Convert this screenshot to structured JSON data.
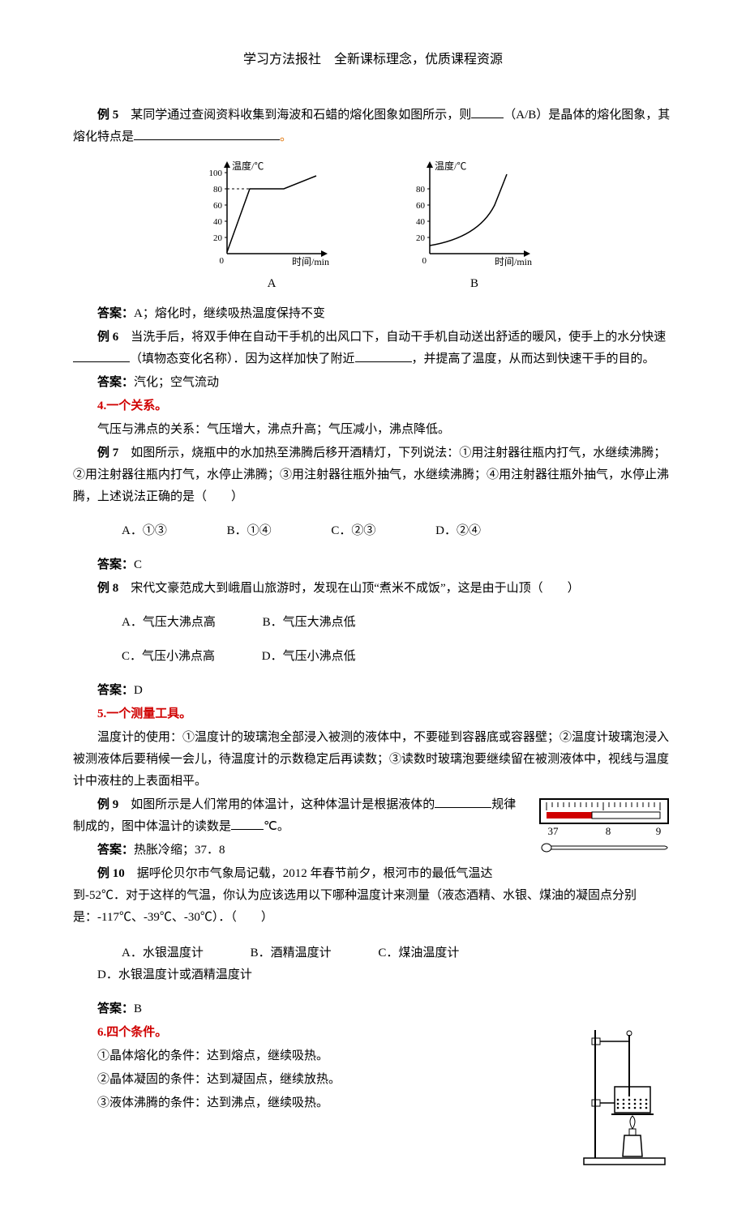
{
  "header": "学习方法报社　全新课标理念，优质课程资源",
  "ex5": {
    "label": "例 5",
    "text_before_blank": "某同学通过查阅资料收集到海波和石蜡的熔化图象如图所示，则",
    "text_middle": "（A/B）是晶体的熔化图象，其熔化特点是",
    "period": "。"
  },
  "chartA": {
    "y_label": "温度/℃",
    "x_label": "时间/min",
    "y_ticks": [
      "20",
      "40",
      "60",
      "80",
      "100"
    ],
    "y_tick_vals": [
      20,
      40,
      60,
      80,
      100
    ],
    "plateau_y": 80,
    "colors": {
      "axis": "#000",
      "line": "#000",
      "dash": "#000"
    },
    "label": "A"
  },
  "chartB": {
    "y_label": "温度/℃",
    "x_label": "时间/min",
    "y_ticks": [
      "20",
      "40",
      "60",
      "80"
    ],
    "y_tick_vals": [
      20,
      40,
      60,
      80
    ],
    "colors": {
      "axis": "#000",
      "line": "#000"
    },
    "label": "B"
  },
  "ans5": {
    "label": "答案：",
    "text": "A；熔化时，继续吸热温度保持不变"
  },
  "ex6": {
    "label": "例 6",
    "t1": "当洗手后，将双手伸在自动干手机的出风口下，自动干手机自动送出舒适的暖风，使手上的水分快速",
    "t2": "（填物态变化名称）．因为这样加快了附近",
    "t3": "，并提高了温度，从而达到快速干手的目的。"
  },
  "ans6": {
    "label": "答案：",
    "text": "汽化；空气流动"
  },
  "sec4": {
    "title": "4.一个关系。",
    "body": "气压与沸点的关系：气压增大，沸点升高；气压减小，沸点降低。"
  },
  "ex7": {
    "label": "例 7",
    "text": "如图所示，烧瓶中的水加热至沸腾后移开酒精灯，下列说法：①用注射器往瓶内打气，水继续沸腾；②用注射器往瓶内打气，水停止沸腾；③用注射器往瓶外抽气，水继续沸腾；④用注射器往瓶外抽气，水停止沸腾，上述说法正确的是（　　）",
    "opts": [
      "A．①③",
      "B．①④",
      "C．②③",
      "D．②④"
    ]
  },
  "ans7": {
    "label": "答案：",
    "text": "C"
  },
  "ex8": {
    "label": "例 8",
    "text": "宋代文豪范成大到峨眉山旅游时，发现在山顶“煮米不成饭”，这是由于山顶（　　）",
    "opts": [
      "A．气压大沸点高",
      "B．气压大沸点低",
      "C．气压小沸点高",
      "D．气压小沸点低"
    ]
  },
  "ans8": {
    "label": "答案：",
    "text": "D"
  },
  "sec5": {
    "title": "5.一个测量工具。",
    "body": "温度计的使用：①温度计的玻璃泡全部浸入被测的液体中，不要碰到容器底或容器壁；②温度计玻璃泡浸入被测液体后要稍候一会儿，待温度计的示数稳定后再读数；③读数时玻璃泡要继续留在被测液体中，视线与温度计中液柱的上表面相平。"
  },
  "ex9": {
    "label": "例 9",
    "t1": "如图所示是人们常用的体温计，这种体温计是根据液体的",
    "t2": "规律制成的，图中体温计的读数是",
    "t3": "℃。"
  },
  "thermo": {
    "scale_labels": [
      "37",
      "8",
      "9"
    ],
    "mercury_value": 37.8,
    "colors": {
      "body": "#000",
      "mercury": "#d00000",
      "bg": "#fff"
    }
  },
  "ans9": {
    "label": "答案：",
    "text": "热胀冷缩；37．8"
  },
  "ex10": {
    "label": "例 10",
    "text": "据呼伦贝尔市气象局记载，2012 年春节前夕，根河市的最低气温达到-52℃．对于这样的气温，你认为应该选用以下哪种温度计来测量（液态酒精、水银、煤油的凝固点分别是：-117℃、-39℃、-30℃）．（　　）",
    "opts": [
      "A．水银温度计",
      "B．酒精温度计",
      "C．煤油温度计",
      "D．水银温度计或酒精温度计"
    ]
  },
  "ans10": {
    "label": "答案：",
    "text": "B"
  },
  "sec6": {
    "title": "6.四个条件。",
    "items": [
      "①晶体熔化的条件：达到熔点，继续吸热。",
      "②晶体凝固的条件：达到凝固点，继续放热。",
      "③液体沸腾的条件：达到沸点，继续吸热。"
    ]
  },
  "stand": {
    "colors": {
      "stroke": "#000"
    }
  }
}
